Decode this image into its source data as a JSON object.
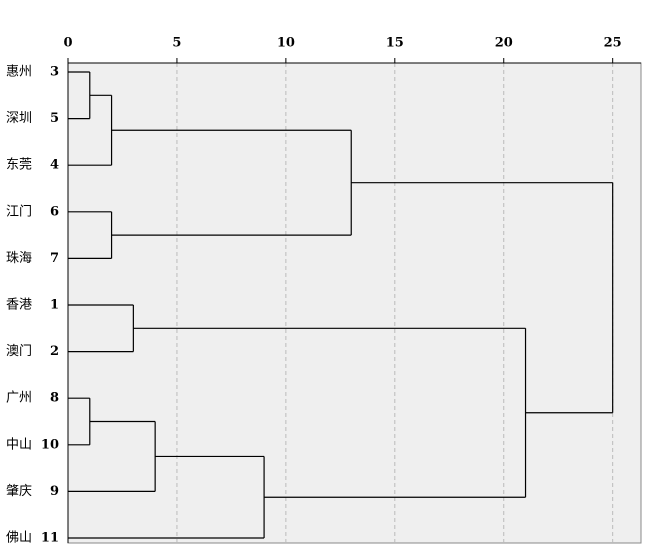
{
  "chart_data": {
    "type": "dendrogram",
    "leaves": [
      {
        "label": "惠州",
        "id": 3
      },
      {
        "label": "深圳",
        "id": 5
      },
      {
        "label": "东莞",
        "id": 4
      },
      {
        "label": "江门",
        "id": 6
      },
      {
        "label": "珠海",
        "id": 7
      },
      {
        "label": "香港",
        "id": 1
      },
      {
        "label": "澳门",
        "id": 2
      },
      {
        "label": "广州",
        "id": 8
      },
      {
        "label": "中山",
        "id": 10
      },
      {
        "label": "肇庆",
        "id": 9
      },
      {
        "label": "佛山",
        "id": 11
      }
    ],
    "merges": [
      {
        "nodes": [
          0,
          1
        ],
        "height": 1
      },
      {
        "nodes": [
          11,
          2
        ],
        "height": 2
      },
      {
        "nodes": [
          3,
          4
        ],
        "height": 2
      },
      {
        "nodes": [
          12,
          13
        ],
        "height": 13
      },
      {
        "nodes": [
          5,
          6
        ],
        "height": 3
      },
      {
        "nodes": [
          7,
          8
        ],
        "height": 1
      },
      {
        "nodes": [
          16,
          9
        ],
        "height": 4
      },
      {
        "nodes": [
          17,
          10
        ],
        "height": 9
      },
      {
        "nodes": [
          15,
          18
        ],
        "height": 21
      },
      {
        "nodes": [
          14,
          19
        ],
        "height": 25
      }
    ],
    "xlim": [
      0,
      26.3
    ],
    "xticks": [
      0,
      5,
      10,
      15,
      20,
      25
    ],
    "grid": true,
    "color": "#000000"
  }
}
